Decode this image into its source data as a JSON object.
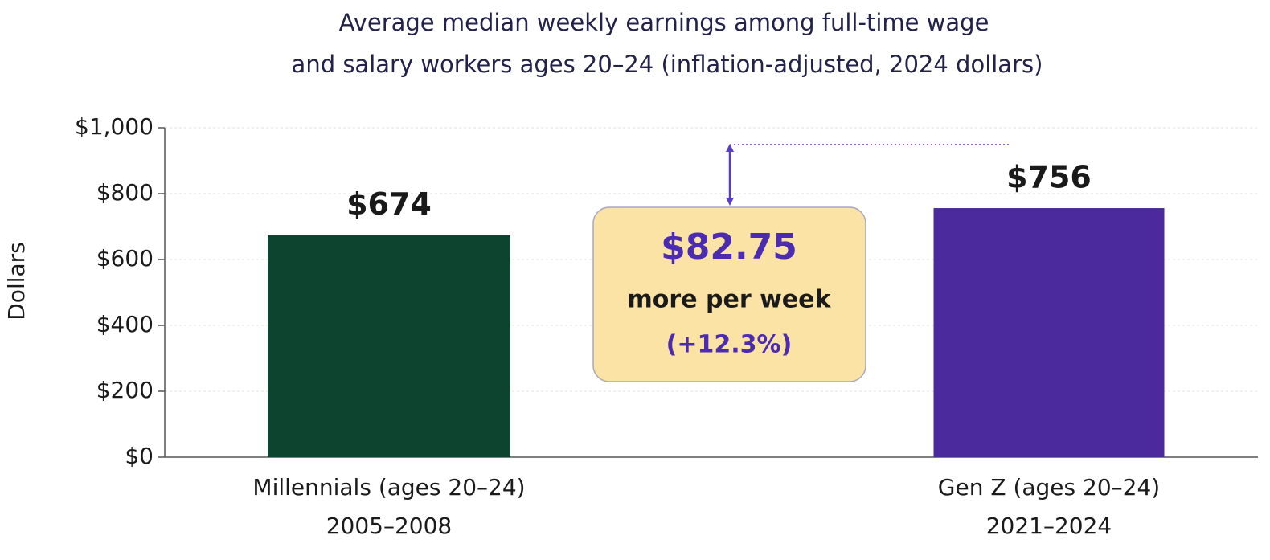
{
  "chart_data": {
    "type": "bar",
    "title": [
      "Average median weekly earnings among full-time wage",
      "and salary workers ages 20–24 (inflation-adjusted, 2024 dollars)"
    ],
    "y_label": "Dollars",
    "categories": [
      [
        "Millennials (ages 20–24)",
        "2005–2008"
      ],
      [
        "Gen Z (ages 20–24)",
        "2021–2024"
      ]
    ],
    "values": [
      674,
      756
    ],
    "value_labels": [
      "$674",
      "$756"
    ],
    "colors": [
      "#0d4430",
      "#4a2a9c"
    ],
    "ylim": [
      0,
      1000
    ],
    "yticks": [
      {
        "value": 0,
        "label": "$0"
      },
      {
        "value": 200,
        "label": "$200"
      },
      {
        "value": 400,
        "label": "$400"
      },
      {
        "value": 600,
        "label": "$600"
      },
      {
        "value": 800,
        "label": "$800"
      },
      {
        "value": 1000,
        "label": "$1,000"
      }
    ],
    "grid": true,
    "annotation": {
      "amount": "$82.75",
      "text": "more per week",
      "change": "(+12.3%)"
    }
  }
}
